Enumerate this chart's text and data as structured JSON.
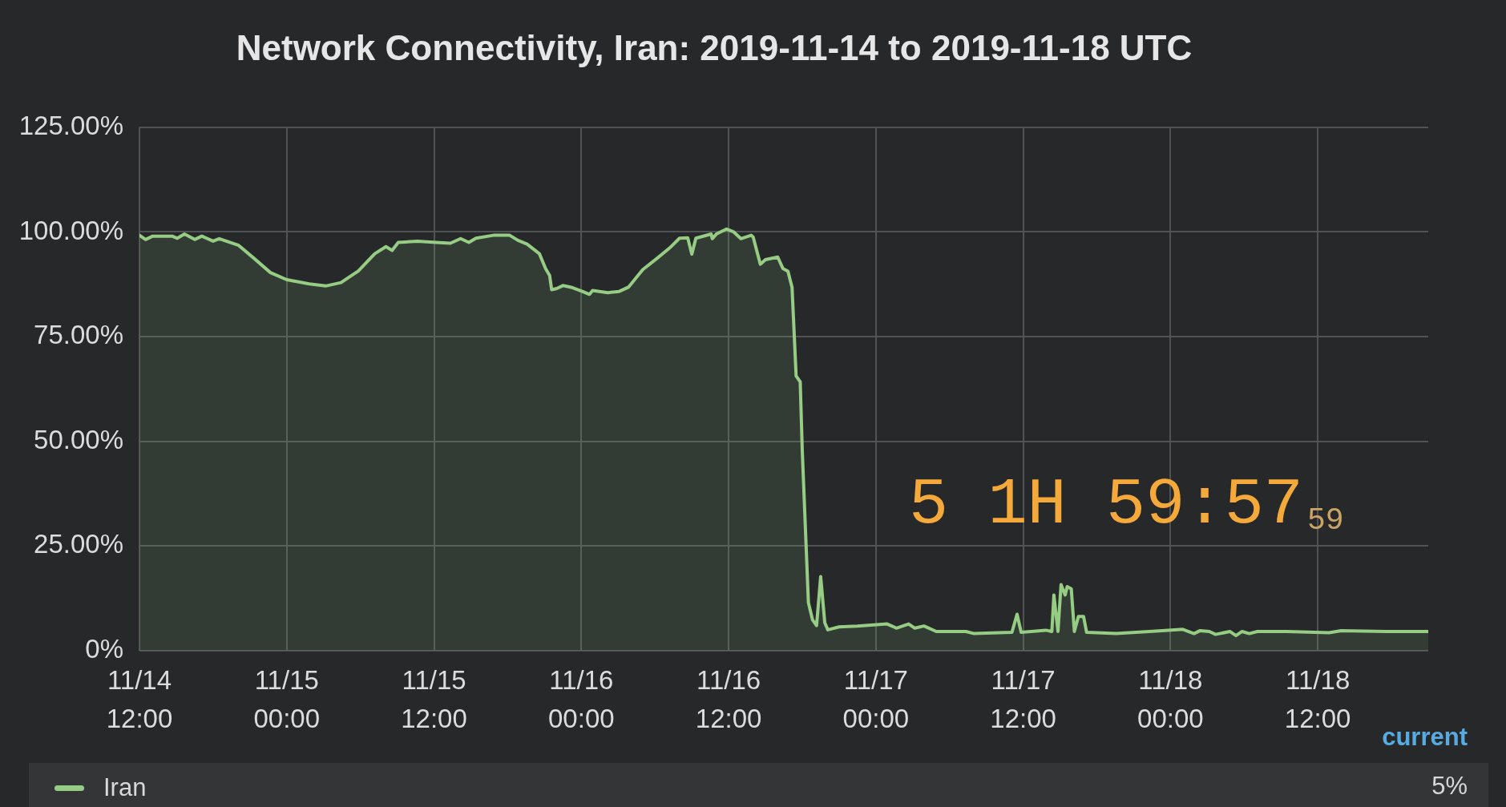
{
  "chart_data": {
    "type": "area",
    "title": "Network Connectivity, Iran: 2019-11-14 to 2019-11-18 UTC",
    "x": [
      "2019-11-14T12:00",
      "2019-11-14T12:30",
      "2019-11-14T13:05",
      "2019-11-14T14:40",
      "2019-11-14T15:05",
      "2019-11-14T15:40",
      "2019-11-14T16:30",
      "2019-11-14T17:05",
      "2019-11-14T18:00",
      "2019-11-14T18:30",
      "2019-11-14T20:05",
      "2019-11-14T21:20",
      "2019-11-14T22:40",
      "2019-11-15T00:00",
      "2019-11-15T01:50",
      "2019-11-15T03:10",
      "2019-11-15T04:25",
      "2019-11-15T05:50",
      "2019-11-15T07:10",
      "2019-11-15T08:05",
      "2019-11-15T08:35",
      "2019-11-15T09:05",
      "2019-11-15T10:40",
      "2019-11-15T12:10",
      "2019-11-15T13:20",
      "2019-11-15T14:10",
      "2019-11-15T14:50",
      "2019-11-15T15:25",
      "2019-11-15T16:50",
      "2019-11-15T18:10",
      "2019-11-15T18:50",
      "2019-11-15T19:35",
      "2019-11-15T20:35",
      "2019-11-15T21:05",
      "2019-11-15T21:25",
      "2019-11-15T21:35",
      "2019-11-15T22:00",
      "2019-11-15T22:30",
      "2019-11-15T23:10",
      "2019-11-16T00:05",
      "2019-11-16T00:40",
      "2019-11-16T00:55",
      "2019-11-16T02:10",
      "2019-11-16T03:05",
      "2019-11-16T03:50",
      "2019-11-16T05:00",
      "2019-11-16T06:10",
      "2019-11-16T07:10",
      "2019-11-16T08:00",
      "2019-11-16T08:40",
      "2019-11-16T09:00",
      "2019-11-16T09:20",
      "2019-11-16T10:35",
      "2019-11-16T10:40",
      "2019-11-16T11:00",
      "2019-11-16T11:50",
      "2019-11-16T12:25",
      "2019-11-16T13:00",
      "2019-11-16T13:50",
      "2019-11-16T14:00",
      "2019-11-16T14:35",
      "2019-11-16T15:00",
      "2019-11-16T16:00",
      "2019-11-16T16:25",
      "2019-11-16T16:50",
      "2019-11-16T17:10",
      "2019-11-16T17:30",
      "2019-11-16T17:50",
      "2019-11-16T18:00",
      "2019-11-16T18:30",
      "2019-11-16T18:50",
      "2019-11-16T19:10",
      "2019-11-16T19:30",
      "2019-11-16T19:50",
      "2019-11-16T20:05",
      "2019-11-16T21:00",
      "2019-11-16T22:30",
      "2019-11-17T00:55",
      "2019-11-17T01:40",
      "2019-11-17T02:40",
      "2019-11-17T03:10",
      "2019-11-17T03:55",
      "2019-11-17T04:55",
      "2019-11-17T07:20",
      "2019-11-17T08:00",
      "2019-11-17T11:05",
      "2019-11-17T11:30",
      "2019-11-17T11:50",
      "2019-11-17T13:50",
      "2019-11-17T14:20",
      "2019-11-17T14:30",
      "2019-11-17T14:50",
      "2019-11-17T15:05",
      "2019-11-17T15:25",
      "2019-11-17T15:35",
      "2019-11-17T15:55",
      "2019-11-17T16:10",
      "2019-11-17T16:30",
      "2019-11-17T16:55",
      "2019-11-17T17:10",
      "2019-11-17T19:35",
      "2019-11-17T23:20",
      "2019-11-18T01:00",
      "2019-11-18T01:55",
      "2019-11-18T02:25",
      "2019-11-18T03:10",
      "2019-11-18T03:40",
      "2019-11-18T04:50",
      "2019-11-18T05:20",
      "2019-11-18T05:50",
      "2019-11-18T06:25",
      "2019-11-18T07:05",
      "2019-11-18T09:30",
      "2019-11-18T12:55",
      "2019-11-18T13:55",
      "2019-11-18T17:35",
      "2019-11-18T21:00"
    ],
    "series": [
      {
        "name": "Iran",
        "color": "#96cc84",
        "values": [
          99.2,
          98.2,
          99.0,
          99.0,
          98.5,
          99.5,
          98.2,
          99.0,
          97.8,
          98.4,
          96.8,
          93.7,
          90.3,
          88.6,
          87.6,
          87.1,
          87.9,
          90.7,
          94.8,
          96.5,
          95.6,
          97.5,
          97.8,
          97.5,
          97.3,
          98.4,
          97.5,
          98.5,
          99.2,
          99.2,
          98.0,
          97.1,
          94.8,
          91.3,
          89.6,
          86.2,
          86.5,
          87.2,
          86.8,
          85.8,
          85.1,
          86.0,
          85.5,
          85.8,
          86.8,
          91.0,
          93.7,
          96.1,
          98.5,
          98.6,
          94.7,
          98.5,
          99.5,
          98.4,
          99.5,
          100.7,
          100.0,
          98.4,
          99.2,
          98.8,
          92.3,
          93.4,
          94.0,
          91.3,
          90.6,
          86.8,
          65.6,
          64.2,
          47.8,
          11.5,
          7.4,
          6.0,
          17.7,
          6.7,
          5.0,
          5.7,
          5.9,
          6.4,
          5.4,
          6.4,
          5.4,
          5.9,
          4.6,
          4.6,
          4.1,
          4.4,
          8.7,
          4.4,
          4.9,
          4.6,
          13.3,
          4.6,
          15.8,
          13.3,
          15.3,
          14.8,
          4.6,
          8.2,
          8.2,
          4.4,
          4.1,
          4.8,
          5.1,
          4.1,
          4.8,
          4.6,
          3.9,
          4.6,
          3.6,
          4.6,
          4.1,
          4.6,
          4.6,
          4.3,
          4.8,
          4.6,
          4.6
        ]
      }
    ],
    "xlim": [
      "2019-11-14T12:00",
      "2019-11-18T21:00"
    ],
    "xticks": [
      {
        "value": "2019-11-14T12:00",
        "label": "11/14\n12:00"
      },
      {
        "value": "2019-11-15T00:00",
        "label": "11/15\n00:00"
      },
      {
        "value": "2019-11-15T12:00",
        "label": "11/15\n12:00"
      },
      {
        "value": "2019-11-16T00:00",
        "label": "11/16\n00:00"
      },
      {
        "value": "2019-11-16T12:00",
        "label": "11/16\n12:00"
      },
      {
        "value": "2019-11-17T00:00",
        "label": "11/17\n00:00"
      },
      {
        "value": "2019-11-17T12:00",
        "label": "11/17\n12:00"
      },
      {
        "value": "2019-11-18T00:00",
        "label": "11/18\n00:00"
      },
      {
        "value": "2019-11-18T12:00",
        "label": "11/18\n12:00"
      }
    ],
    "ylim": [
      0,
      125
    ],
    "yticks": [
      {
        "value": 0,
        "label": "0%"
      },
      {
        "value": 25,
        "label": "25.00%"
      },
      {
        "value": 50,
        "label": "50.00%"
      },
      {
        "value": 75,
        "label": "75.00%"
      },
      {
        "value": 100,
        "label": "100.00%"
      },
      {
        "value": 125,
        "label": "125.00%"
      }
    ],
    "grid": true,
    "legend": "bottom",
    "annotations": [
      "5 1H 59:57",
      "59",
      "current",
      "5%"
    ]
  }
}
